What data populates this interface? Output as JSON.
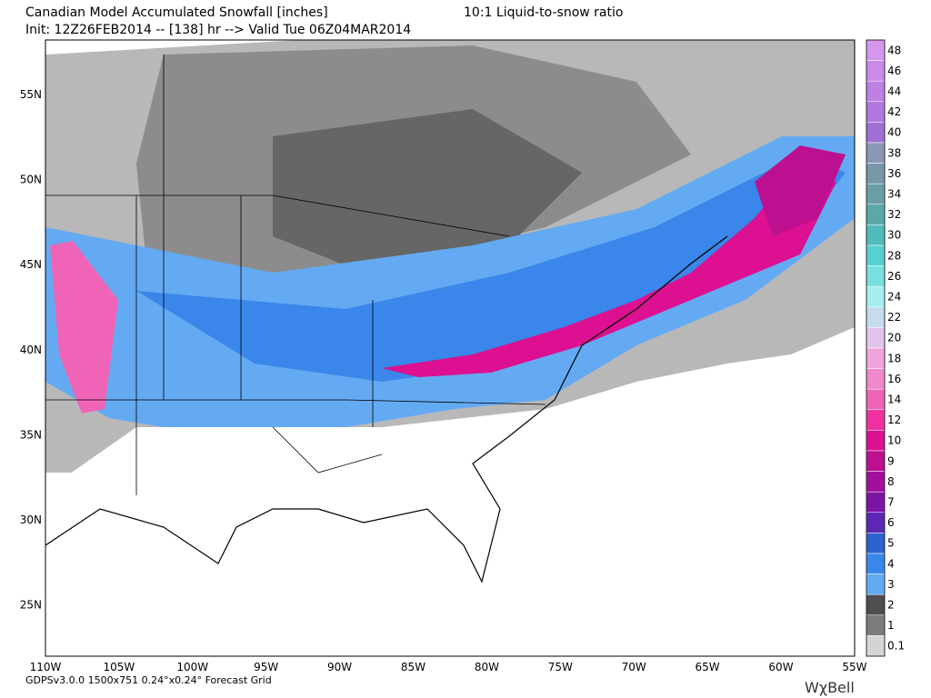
{
  "header": {
    "title": "Canadian Model Accumulated Snowfall [inches]",
    "ratio": "10:1 Liquid-to-snow ratio",
    "init": "Init: 12Z26FEB2014 -- [138] hr --> Valid Tue 06Z04MAR2014"
  },
  "map": {
    "lat_labels": [
      "55N",
      "50N",
      "45N",
      "40N",
      "35N",
      "30N",
      "25N"
    ],
    "lon_labels": [
      "110W",
      "105W",
      "100W",
      "95W",
      "90W",
      "85W",
      "80W",
      "75W",
      "70W",
      "65W",
      "60W",
      "55W"
    ]
  },
  "legend": {
    "items": [
      {
        "label": "48",
        "color": "#d596ee"
      },
      {
        "label": "46",
        "color": "#ca8aea"
      },
      {
        "label": "44",
        "color": "#bf80e6"
      },
      {
        "label": "42",
        "color": "#b178e0"
      },
      {
        "label": "40",
        "color": "#a070d6"
      },
      {
        "label": "38",
        "color": "#8a96b4"
      },
      {
        "label": "36",
        "color": "#7898a8"
      },
      {
        "label": "34",
        "color": "#6a9ea4"
      },
      {
        "label": "32",
        "color": "#5aa8a8"
      },
      {
        "label": "30",
        "color": "#50bcbc"
      },
      {
        "label": "28",
        "color": "#58d0d0"
      },
      {
        "label": "26",
        "color": "#78e0e0"
      },
      {
        "label": "24",
        "color": "#a4eeee"
      },
      {
        "label": "22",
        "color": "#c4dcee"
      },
      {
        "label": "20",
        "color": "#e2c4ea"
      },
      {
        "label": "18",
        "color": "#f0a6da"
      },
      {
        "label": "16",
        "color": "#f088cc"
      },
      {
        "label": "14",
        "color": "#f064b8"
      },
      {
        "label": "12",
        "color": "#ee30a0"
      },
      {
        "label": "10",
        "color": "#dc1090"
      },
      {
        "label": "9",
        "color": "#bc1090"
      },
      {
        "label": "8",
        "color": "#a0109a"
      },
      {
        "label": "7",
        "color": "#7c14a4"
      },
      {
        "label": "6",
        "color": "#5a28b4"
      },
      {
        "label": "5",
        "color": "#2e62d0"
      },
      {
        "label": "4",
        "color": "#3a86ea"
      },
      {
        "label": "3",
        "color": "#64aaf2"
      },
      {
        "label": "2",
        "color": "#4e4e4e"
      },
      {
        "label": "1",
        "color": "#7c7c7c"
      },
      {
        "label": "0.1",
        "color": "#d4d4d4"
      }
    ]
  },
  "footer": {
    "info": "GDPSv3.0.0 1500x751 0.24°x0.24° Forecast Grid",
    "logo": "WχBell"
  }
}
